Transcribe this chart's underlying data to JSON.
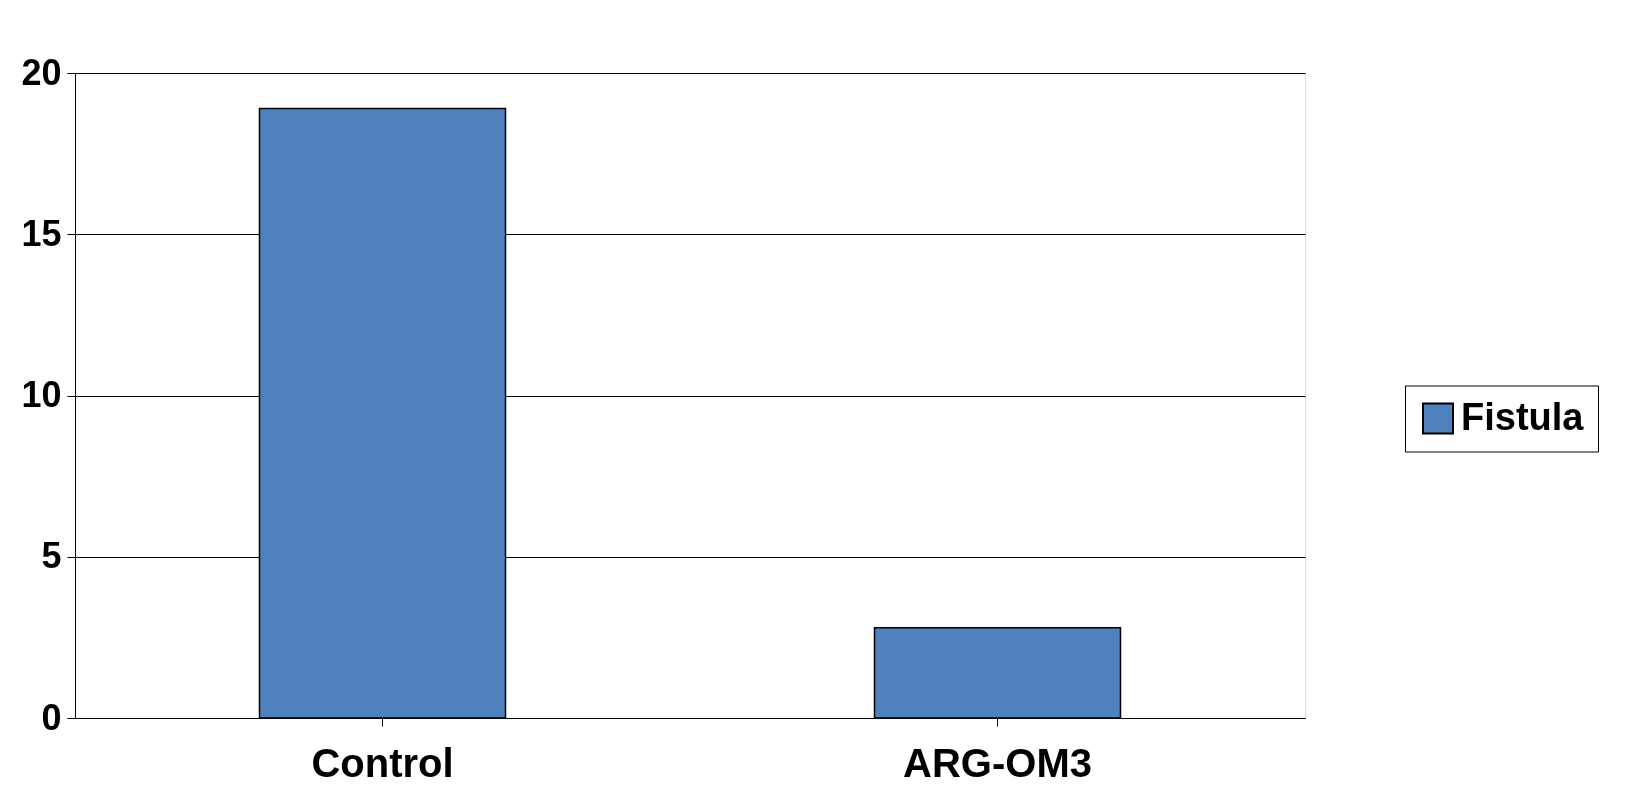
{
  "chart_data": {
    "type": "bar",
    "categories": [
      "Control",
      "ARG-OM3"
    ],
    "series": [
      {
        "name": "Fistula",
        "color": "#4f81bd",
        "values": [
          18.9,
          2.8
        ]
      }
    ],
    "ylim": [
      0,
      20
    ],
    "yticks": [
      0,
      5,
      10,
      15,
      20
    ],
    "grid": "y",
    "legend": "right"
  }
}
